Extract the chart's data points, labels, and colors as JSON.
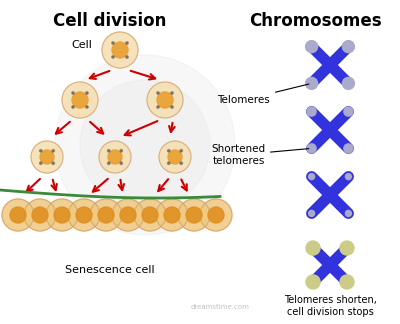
{
  "title_left": "Cell division",
  "title_right": "Chromosomes",
  "label_cell": "Cell",
  "label_senescence": "Senescence cell",
  "label_telomeres": "Telomeres",
  "label_shortened": "Shortened\ntelomeres",
  "label_bottom": "Telomeres shorten,\ncell division stops",
  "watermark": "dreamstime.com",
  "bg_color": "#ffffff",
  "cell_outer": "#f5ddb0",
  "cell_inner": "#e8a030",
  "cell_membrane": "#d4a060",
  "arrow_color": "#cc0000",
  "green_line_color": "#3a8a3a",
  "chrom_blue": "#3333dd",
  "chrom_blue_light": "#6666ff",
  "chrom_cap_full": "#aaaacc",
  "chrom_cap_short": "#cccc88",
  "chrom_lw": 8,
  "title_fontsize": 12,
  "label_fontsize": 8
}
